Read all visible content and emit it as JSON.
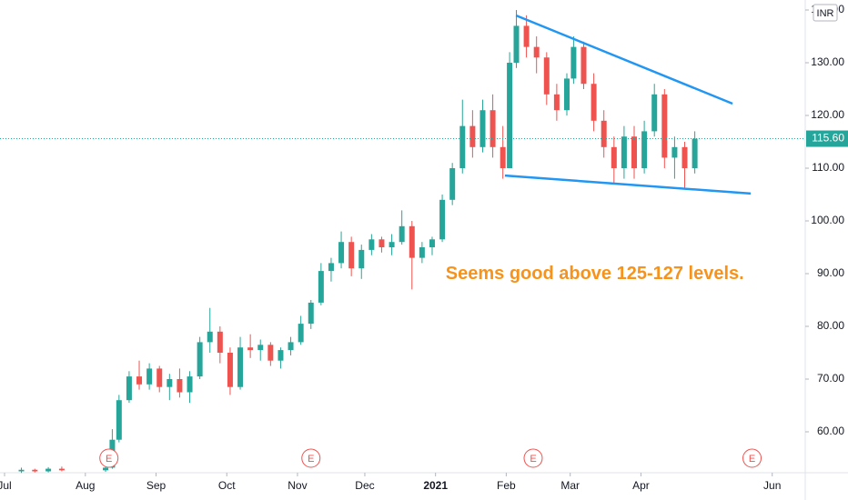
{
  "chart_data": {
    "type": "candlestick",
    "currency": "INR",
    "up_color": "#26a69a",
    "down_color": "#ef5350",
    "x": [
      5,
      9,
      13,
      17,
      30,
      32,
      34,
      37,
      40,
      43,
      46,
      49,
      52,
      55,
      58,
      61,
      64,
      67,
      70,
      73,
      76,
      79,
      82,
      85,
      88,
      91,
      94,
      97,
      100,
      103,
      106,
      109,
      112,
      115,
      118,
      121,
      124,
      127,
      130,
      133,
      136,
      139,
      142,
      145,
      148,
      150,
      152,
      155,
      158,
      161,
      164,
      167,
      169,
      172,
      175,
      178,
      181,
      184,
      187,
      190,
      193,
      196,
      199,
      202,
      205
    ],
    "open": [
      52.5,
      52.8,
      52.5,
      53.0,
      52.7,
      53.2,
      58.5,
      66.0,
      70.5,
      69.0,
      72.0,
      68.5,
      70.0,
      67.5,
      70.5,
      77.0,
      79.0,
      75.0,
      68.5,
      76.0,
      75.5,
      76.5,
      73.5,
      75.5,
      77.0,
      80.5,
      84.5,
      90.5,
      92,
      96,
      91,
      94.5,
      96.5,
      95,
      96,
      99,
      93,
      95,
      96.5,
      104,
      110,
      118,
      114,
      121,
      114,
      110,
      130,
      137,
      133,
      131,
      124,
      121,
      127,
      133,
      126,
      119,
      114,
      110,
      116,
      110,
      117,
      124,
      112,
      114,
      110
    ],
    "high": [
      53.2,
      53.0,
      53.3,
      53.4,
      53.5,
      60.5,
      67.0,
      71.5,
      73.5,
      73.0,
      72.5,
      71.0,
      72.0,
      71.5,
      78.0,
      83.5,
      80.0,
      76.0,
      78.0,
      78.5,
      77.5,
      77.0,
      76.0,
      78.0,
      82.0,
      85,
      92,
      93,
      98,
      97,
      95.5,
      97.5,
      97,
      97.5,
      102,
      100,
      96,
      97,
      105,
      111,
      123,
      121,
      123,
      124,
      118,
      132,
      140,
      139,
      135,
      132,
      126,
      128,
      135,
      134,
      128,
      121,
      116,
      118,
      118,
      119,
      126,
      125,
      116,
      115,
      117
    ],
    "low": [
      52.2,
      52.3,
      52.3,
      52.5,
      52.4,
      53.0,
      58.0,
      65.5,
      68.0,
      68.0,
      67.5,
      66.0,
      66.5,
      65.5,
      70.0,
      75.0,
      73.0,
      67.0,
      68.0,
      74.0,
      73.5,
      72.5,
      72.0,
      74.5,
      76.5,
      79.5,
      84,
      88.5,
      91,
      89.5,
      89,
      93.5,
      94,
      93.5,
      95.5,
      87,
      92,
      93.5,
      96,
      103,
      109,
      112,
      113,
      112,
      108,
      110,
      129,
      131,
      128,
      122,
      119,
      120,
      126,
      125,
      117,
      112,
      107,
      108,
      108,
      109,
      116,
      110,
      108,
      106,
      109
    ],
    "close": [
      52.8,
      52.5,
      53.0,
      52.7,
      53.2,
      58.5,
      66.0,
      70.5,
      69.0,
      72.0,
      68.5,
      70.0,
      67.5,
      70.5,
      77.0,
      79.0,
      75.0,
      68.5,
      76.0,
      75.5,
      76.5,
      73.5,
      75.5,
      77.0,
      80.5,
      84.5,
      90.5,
      92,
      96,
      91,
      94.5,
      96.5,
      95,
      96,
      99,
      93,
      95,
      96.5,
      104,
      110,
      118,
      114,
      121,
      114,
      110,
      130,
      137,
      133,
      131,
      124,
      121,
      127,
      133,
      126,
      119,
      114,
      110,
      116,
      110,
      117,
      124,
      112,
      114,
      110,
      115.6
    ],
    "xlim": [
      -1.35,
      237.8
    ],
    "ylim": [
      52.24,
      141.9
    ],
    "xticks": [
      {
        "value": 0,
        "label": "Jul"
      },
      {
        "value": 24,
        "label": "Aug"
      },
      {
        "value": 45,
        "label": "Sep"
      },
      {
        "value": 66,
        "label": "Oct"
      },
      {
        "value": 87,
        "label": "Nov"
      },
      {
        "value": 107,
        "label": "Dec"
      },
      {
        "value": 128,
        "label": "2021"
      },
      {
        "value": 149,
        "label": "Feb"
      },
      {
        "value": 168,
        "label": "Mar"
      },
      {
        "value": 189,
        "label": "Apr"
      },
      {
        "value": 228,
        "label": "Jun"
      }
    ],
    "yticks": [
      {
        "value": 60,
        "label": "60.00"
      },
      {
        "value": 70,
        "label": "70.00"
      },
      {
        "value": 80,
        "label": "80.00"
      },
      {
        "value": 90,
        "label": "90.00"
      },
      {
        "value": 100,
        "label": "100.00"
      },
      {
        "value": 110,
        "label": "110.00"
      },
      {
        "value": 120,
        "label": "120.00"
      },
      {
        "value": 130,
        "label": "130.00"
      },
      {
        "value": 140,
        "label": "140.00"
      }
    ],
    "last_price": {
      "value": 115.6,
      "label": "115.60"
    },
    "trendlines": [
      {
        "color": "#2196f3",
        "x": [
          151.9,
          216.2
        ],
        "y": [
          138.97,
          122.24
        ]
      },
      {
        "color": "#2196f3",
        "x": [
          148.6,
          221.6
        ],
        "y": [
          108.6,
          105.2
        ]
      }
    ],
    "annotation": {
      "text": "Seems good above 125-127 levels.",
      "color": "#f7931a",
      "x": 131,
      "y": 89.9
    },
    "events": [
      {
        "x": 31,
        "label": "E"
      },
      {
        "x": 91,
        "label": "E"
      },
      {
        "x": 157,
        "label": "E"
      },
      {
        "x": 222,
        "label": "E"
      }
    ]
  }
}
